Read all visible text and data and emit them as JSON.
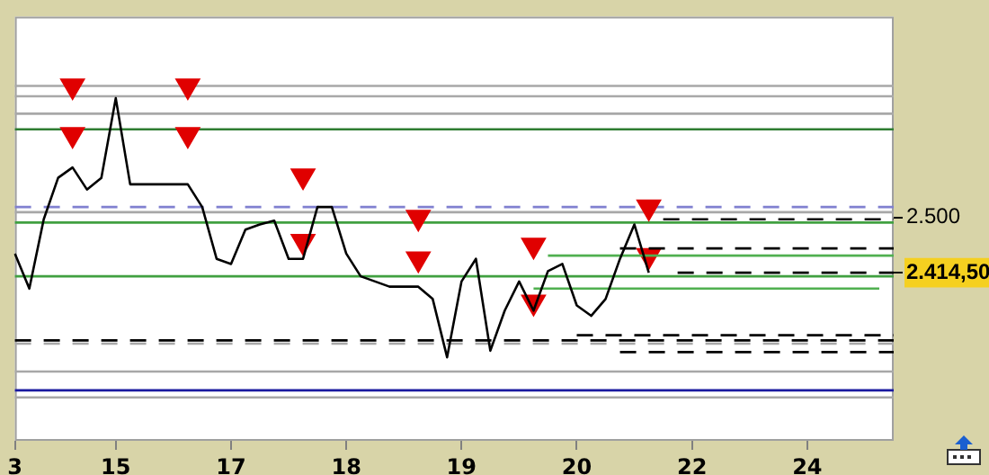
{
  "chart_data": {
    "type": "line",
    "categories": [
      "3",
      null,
      null,
      null,
      null,
      null,
      null,
      "15",
      null,
      null,
      null,
      null,
      null,
      null,
      null,
      "17",
      null,
      null,
      null,
      null,
      null,
      null,
      null,
      "18",
      null,
      null,
      null,
      null,
      null,
      null,
      null,
      "19",
      null,
      null,
      null,
      null,
      null,
      null,
      null,
      "20",
      null,
      null,
      null,
      null,
      null,
      null,
      null,
      "22",
      null,
      null,
      null,
      null,
      null,
      null,
      null,
      "24",
      null,
      null,
      null,
      null,
      null,
      null
    ],
    "series": [
      {
        "color": "#000000",
        "values": [
          2444,
          2390,
          2497,
          2561,
          2577,
          2543,
          2561,
          2684,
          2551,
          2551,
          2551,
          2551,
          2551,
          2516,
          2436,
          2428,
          2481,
          2489,
          2495,
          2436,
          2436,
          2516,
          2516,
          2444,
          2409,
          2401,
          2393,
          2393,
          2393,
          2374,
          2284,
          2401,
          2436,
          2294,
          2356,
          2401,
          2356,
          2417,
          2428,
          2364,
          2348,
          2374,
          2436,
          2489,
          2414.5,
          null,
          null,
          null,
          null,
          null,
          null,
          null,
          null,
          null,
          null,
          null,
          null,
          null,
          null,
          null,
          null,
          null
        ]
      },
      {
        "type": "line",
        "color": "#50b050",
        "values": [
          null,
          null,
          null,
          null,
          null,
          null,
          null,
          null,
          null,
          null,
          null,
          null,
          null,
          null,
          null,
          null,
          null,
          null,
          null,
          null,
          null,
          null,
          null,
          null,
          null,
          null,
          null,
          null,
          null,
          null,
          null,
          null,
          null,
          null,
          null,
          null,
          null,
          2441,
          2441,
          2441,
          2441,
          2441,
          2441,
          2441,
          2441,
          2441,
          2441,
          2441,
          2441,
          2441,
          2441,
          2441,
          2441,
          2441,
          2441,
          2441,
          2441,
          2441,
          2441,
          2441,
          2441,
          2441
        ]
      },
      {
        "type": "line",
        "color": "#50b050",
        "values": [
          null,
          null,
          null,
          null,
          null,
          null,
          null,
          null,
          null,
          null,
          null,
          null,
          null,
          null,
          null,
          null,
          null,
          null,
          null,
          null,
          null,
          null,
          null,
          null,
          null,
          null,
          null,
          null,
          null,
          null,
          null,
          null,
          null,
          null,
          null,
          null,
          2390,
          2390,
          2390,
          2390,
          2390,
          2390,
          2390,
          2390,
          2390,
          2390,
          2390,
          2390,
          2390,
          2390,
          2390,
          2390,
          2390,
          2390,
          2390,
          2390,
          2390,
          2390,
          2390,
          2390,
          2390,
          null
        ]
      },
      {
        "type": "line",
        "color": "#000000",
        "line_style": "dashed",
        "values": [
          null,
          null,
          null,
          null,
          null,
          null,
          null,
          null,
          null,
          null,
          null,
          null,
          null,
          null,
          null,
          null,
          null,
          null,
          null,
          null,
          null,
          null,
          null,
          null,
          null,
          null,
          null,
          null,
          null,
          null,
          null,
          null,
          null,
          null,
          null,
          null,
          null,
          null,
          null,
          null,
          null,
          null,
          null,
          null,
          null,
          2497,
          2497,
          2497,
          2497,
          2497,
          2497,
          2497,
          2497,
          2497,
          2497,
          2497,
          2497,
          2497,
          2497,
          2497,
          2497,
          2497
        ]
      },
      {
        "type": "line",
        "color": "#000000",
        "line_style": "dashed",
        "values": [
          null,
          null,
          null,
          null,
          null,
          null,
          null,
          null,
          null,
          null,
          null,
          null,
          null,
          null,
          null,
          null,
          null,
          null,
          null,
          null,
          null,
          null,
          null,
          null,
          null,
          null,
          null,
          null,
          null,
          null,
          null,
          null,
          null,
          null,
          null,
          null,
          null,
          null,
          null,
          null,
          null,
          null,
          2452,
          2452,
          2452,
          2452,
          2452,
          2452,
          2452,
          2452,
          2452,
          2452,
          2452,
          2452,
          2452,
          2452,
          2452,
          2452,
          2452,
          2452,
          2452,
          2452
        ]
      },
      {
        "type": "line",
        "color": "#000000",
        "line_style": "dashed",
        "values": [
          null,
          null,
          null,
          null,
          null,
          null,
          null,
          null,
          null,
          null,
          null,
          null,
          null,
          null,
          null,
          null,
          null,
          null,
          null,
          null,
          null,
          null,
          null,
          null,
          null,
          null,
          null,
          null,
          null,
          null,
          null,
          null,
          null,
          null,
          null,
          null,
          null,
          null,
          null,
          null,
          null,
          null,
          null,
          null,
          null,
          null,
          2414.5,
          2414.5,
          2414.5,
          2414.5,
          2414.5,
          2414.5,
          2414.5,
          2414.5,
          2414.5,
          2414.5,
          2414.5,
          2414.5,
          2414.5,
          2414.5,
          2414.5,
          2414.5
        ]
      },
      {
        "type": "line",
        "color": "#000000",
        "line_style": "dashed",
        "values": [
          null,
          null,
          null,
          null,
          null,
          null,
          null,
          null,
          null,
          null,
          null,
          null,
          null,
          null,
          null,
          null,
          null,
          null,
          null,
          null,
          null,
          null,
          null,
          null,
          null,
          null,
          null,
          null,
          null,
          null,
          null,
          null,
          null,
          null,
          null,
          null,
          null,
          null,
          null,
          2318,
          2318,
          2318,
          2318,
          2318,
          2318,
          2318,
          2318,
          2318,
          2318,
          2318,
          2318,
          2318,
          2318,
          2318,
          2318,
          2318,
          2318,
          2318,
          2318,
          2318,
          2318,
          2318
        ]
      },
      {
        "type": "line",
        "color": "#000000",
        "line_style": "dashed",
        "values": [
          null,
          null,
          null,
          null,
          null,
          null,
          null,
          null,
          null,
          null,
          null,
          null,
          null,
          null,
          null,
          null,
          null,
          null,
          null,
          null,
          null,
          null,
          null,
          null,
          null,
          null,
          null,
          null,
          null,
          null,
          null,
          null,
          null,
          null,
          null,
          null,
          null,
          null,
          null,
          null,
          null,
          null,
          2292,
          2292,
          2292,
          2292,
          2292,
          2292,
          2292,
          2292,
          2292,
          2292,
          2292,
          2292,
          2292,
          2292,
          2292,
          2292,
          2292,
          2292,
          2292,
          2292
        ]
      },
      {
        "type": "scatter",
        "color": "#e00000",
        "marker": "triangle",
        "values": [
          null,
          null,
          null,
          null,
          2703,
          null,
          null,
          null,
          null,
          null,
          null,
          null,
          2703,
          null,
          null,
          null,
          null,
          null,
          null,
          null,
          2564,
          null,
          null,
          null,
          null,
          null,
          null,
          null,
          2500,
          null,
          null,
          null,
          null,
          null,
          null,
          null,
          2457,
          null,
          null,
          null,
          null,
          null,
          null,
          null,
          2516,
          null,
          null,
          null,
          null,
          null,
          null,
          null,
          null,
          null,
          null,
          null,
          null,
          null,
          null,
          null,
          null,
          null
        ]
      },
      {
        "type": "scatter",
        "color": "#e00000",
        "marker": "triangle",
        "values": [
          null,
          null,
          null,
          null,
          2628,
          null,
          null,
          null,
          null,
          null,
          null,
          null,
          2628,
          null,
          null,
          null,
          null,
          null,
          null,
          null,
          2463,
          null,
          null,
          null,
          null,
          null,
          null,
          null,
          2436,
          null,
          null,
          null,
          null,
          null,
          null,
          null,
          2369,
          null,
          null,
          null,
          null,
          null,
          null,
          null,
          2441,
          null,
          null,
          null,
          null,
          null,
          null,
          null,
          null,
          null,
          null,
          null,
          null,
          null,
          null,
          null,
          null,
          null
        ]
      }
    ],
    "ylim": [
      2155,
      2810
    ],
    "yticks": [
      {
        "value": 2500,
        "label": "2.500"
      },
      {
        "value": 2414.5,
        "label": "2.414,50"
      }
    ],
    "grid": false,
    "ref_lines": [
      {
        "axis": "y",
        "value": 2703,
        "color": "#a8a8a8"
      },
      {
        "axis": "y",
        "value": 2687,
        "color": "#a8a8a8"
      },
      {
        "axis": "y",
        "value": 2660,
        "color": "#a8a8a8"
      },
      {
        "axis": "y",
        "value": 2636,
        "color": "#2e7d32"
      },
      {
        "axis": "y",
        "value": 2516,
        "color": "#8080d0",
        "line_style": "dashed"
      },
      {
        "axis": "y",
        "value": 2508,
        "color": "#a8a8a8"
      },
      {
        "axis": "y",
        "value": 2492,
        "color": "#40a040"
      },
      {
        "axis": "y",
        "value": 2409,
        "color": "#40a040"
      },
      {
        "axis": "y",
        "value": 2310,
        "color": "#000000",
        "line_style": "dashed"
      },
      {
        "axis": "y",
        "value": 2305,
        "color": "#a8a8a8",
        "line_style": "dashed"
      },
      {
        "axis": "y",
        "value": 2262,
        "color": "#a8a8a8"
      },
      {
        "axis": "y",
        "value": 2233,
        "color": "#1a1aa0"
      },
      {
        "axis": "y",
        "value": 2222,
        "color": "#a8a8a8"
      }
    ]
  }
}
